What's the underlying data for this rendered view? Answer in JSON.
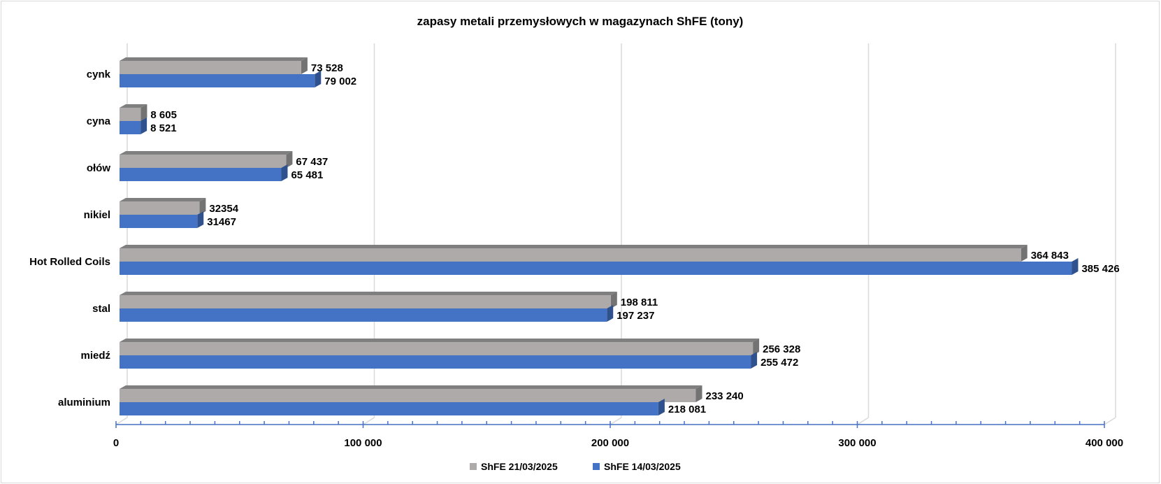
{
  "chart_data": {
    "type": "bar",
    "orientation": "horizontal",
    "style": "3d-clustered",
    "title": "zapasy metali przemysłowych w magazynach ShFE (tony)",
    "xlabel": "",
    "ylabel": "",
    "xlim": [
      0,
      400000
    ],
    "xticks": [
      0,
      100000,
      200000,
      300000,
      400000
    ],
    "xtick_labels": [
      "0",
      "100 000",
      "200 000",
      "300 000",
      "400 000"
    ],
    "grid": true,
    "legend_position": "bottom",
    "categories": [
      "cynk",
      "cyna",
      "ołów",
      "nikiel",
      "Hot Rolled Coils",
      "stal",
      "miedź",
      "aluminium"
    ],
    "series": [
      {
        "name": "ShFE 21/03/2025",
        "color": "#ADAAA9",
        "values": [
          73528,
          8605,
          67437,
          32354,
          364843,
          198811,
          256328,
          233240
        ],
        "labels": [
          "73 528",
          "8 605",
          "67 437",
          "32354",
          "364 843",
          "198 811",
          "256 328",
          "233 240"
        ]
      },
      {
        "name": "ShFE 14/03/2025",
        "color": "#4472C4",
        "values": [
          79002,
          8521,
          65481,
          31467,
          385426,
          197237,
          255472,
          218081
        ],
        "labels": [
          "79 002",
          "8 521",
          "65 481",
          "31467",
          "385 426",
          "197 237",
          "255 472",
          "218 081"
        ]
      }
    ]
  }
}
